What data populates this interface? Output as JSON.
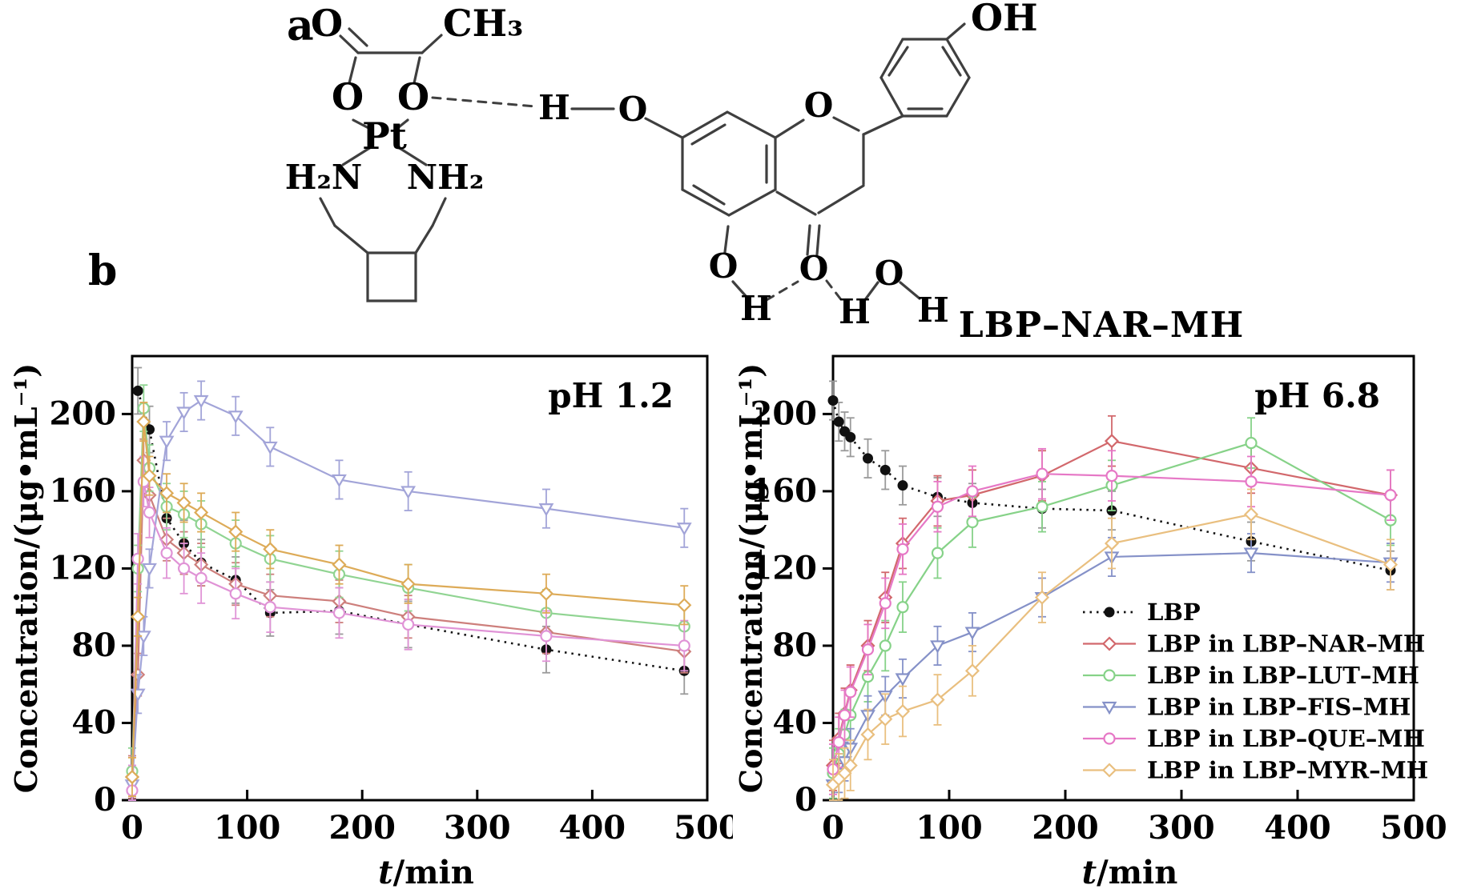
{
  "panel_a_label": "a",
  "panel_b_label": "b",
  "title": "LBP–NAR–MH",
  "structure": {
    "description": "hydrogen-bonded complex of lobaplatin with naringenin and water",
    "atoms": [
      {
        "id": "o-carboxyl",
        "label": "O"
      },
      {
        "id": "ch3",
        "label": "CH₃"
      },
      {
        "id": "o-left",
        "label": "O"
      },
      {
        "id": "o-right",
        "label": "O"
      },
      {
        "id": "pt",
        "label": "Pt"
      },
      {
        "id": "h2n",
        "label": "H₂N"
      },
      {
        "id": "nh2",
        "label": "NH₂"
      },
      {
        "id": "h-bridge",
        "label": "H"
      },
      {
        "id": "o-phenol7",
        "label": "O"
      },
      {
        "id": "o-chromene",
        "label": "O"
      },
      {
        "id": "oh-para",
        "label": "OH"
      },
      {
        "id": "o-5",
        "label": "O"
      },
      {
        "id": "h-5",
        "label": "H"
      },
      {
        "id": "o-ketone",
        "label": "O"
      },
      {
        "id": "h-water-left",
        "label": "H"
      },
      {
        "id": "o-water",
        "label": "O"
      },
      {
        "id": "h-water-right",
        "label": "H"
      }
    ]
  },
  "chart_data": [
    {
      "type": "line",
      "annotation": "pH 1.2",
      "xlabel_italic": "t",
      "xlabel_rest": "/min",
      "ylabel": "Concentration/(μg•mL⁻¹)",
      "xlim": [
        0,
        500
      ],
      "ylim": [
        0,
        230
      ],
      "xticks": [
        0,
        100,
        200,
        300,
        400,
        500
      ],
      "yticks": [
        0,
        40,
        80,
        120,
        160,
        200
      ],
      "grid": false,
      "legend": false,
      "series": [
        {
          "key": "lbp",
          "name": "LBP",
          "color": "#141414",
          "err_color": "#9a9a9a",
          "marker": "filled-circle",
          "dashed": true,
          "err": 12,
          "x": [
            5,
            15,
            30,
            45,
            60,
            90,
            120,
            180,
            240,
            360,
            480
          ],
          "y": [
            212,
            192,
            146,
            133,
            123,
            114,
            97,
            98,
            91,
            78,
            67
          ]
        },
        {
          "key": "nar",
          "name": "LBP in LBP–NAR–MH",
          "color": "#cd7f7c",
          "marker": "diamond",
          "dashed": false,
          "err": 11,
          "x": [
            0,
            5,
            10,
            15,
            30,
            45,
            60,
            90,
            120,
            180,
            240,
            360,
            480
          ],
          "y": [
            12,
            65,
            176,
            158,
            135,
            128,
            122,
            112,
            106,
            103,
            95,
            87,
            77
          ]
        },
        {
          "key": "lut",
          "name": "LBP in LBP–LUT–MH",
          "color": "#90d492",
          "marker": "circle",
          "dashed": false,
          "err": 12,
          "x": [
            0,
            5,
            10,
            15,
            30,
            45,
            60,
            90,
            120,
            180,
            240,
            360,
            480
          ],
          "y": [
            15,
            120,
            203,
            172,
            152,
            148,
            143,
            133,
            125,
            117,
            110,
            97,
            90
          ]
        },
        {
          "key": "fis",
          "name": "LBP in LBP–FIS–MH",
          "color": "#a2a4d8",
          "marker": "triangle-down",
          "dashed": false,
          "err": 10,
          "x": [
            0,
            5,
            10,
            15,
            30,
            45,
            60,
            90,
            120,
            180,
            240,
            360,
            480
          ],
          "y": [
            8,
            55,
            85,
            120,
            186,
            201,
            207,
            199,
            183,
            166,
            160,
            151,
            141
          ]
        },
        {
          "key": "que",
          "name": "LBP in LBP–QUE–MH",
          "color": "#e093d6",
          "marker": "circle",
          "dashed": false,
          "err": 13,
          "x": [
            0,
            5,
            10,
            15,
            30,
            45,
            60,
            90,
            120,
            180,
            240,
            360,
            480
          ],
          "y": [
            5,
            125,
            165,
            149,
            128,
            120,
            115,
            107,
            100,
            97,
            91,
            85,
            80
          ]
        },
        {
          "key": "myr",
          "name": "LBP in LBP–MYR–MH",
          "color": "#ddab58",
          "marker": "diamond",
          "dashed": false,
          "err": 10,
          "x": [
            0,
            5,
            10,
            15,
            30,
            45,
            60,
            90,
            120,
            180,
            240,
            360,
            480
          ],
          "y": [
            12,
            95,
            196,
            168,
            159,
            154,
            149,
            139,
            130,
            122,
            112,
            107,
            101
          ]
        }
      ]
    },
    {
      "type": "line",
      "annotation": "pH 6.8",
      "xlabel_italic": "t",
      "xlabel_rest": "/min",
      "ylabel": "Concentration/(μg•mL⁻¹)",
      "xlim": [
        0,
        500
      ],
      "ylim": [
        0,
        230
      ],
      "xticks": [
        0,
        100,
        200,
        300,
        400,
        500
      ],
      "yticks": [
        0,
        40,
        80,
        120,
        160,
        200
      ],
      "grid": false,
      "legend": true,
      "series": [
        {
          "key": "lbp",
          "name": "LBP",
          "color": "#141414",
          "err_color": "#9a9a9a",
          "marker": "filled-circle",
          "dashed": true,
          "err": 10,
          "x": [
            0,
            5,
            10,
            15,
            30,
            45,
            60,
            90,
            120,
            180,
            240,
            360,
            480
          ],
          "y": [
            207,
            196,
            191,
            188,
            177,
            171,
            163,
            157,
            154,
            151,
            150,
            134,
            119
          ]
        },
        {
          "key": "nar",
          "name": "LBP in LBP–NAR–MH",
          "color": "#d2686c",
          "marker": "diamond",
          "dashed": false,
          "err": 13,
          "x": [
            0,
            5,
            10,
            15,
            30,
            45,
            60,
            90,
            120,
            180,
            240,
            360,
            480
          ],
          "y": [
            18,
            32,
            45,
            57,
            80,
            105,
            133,
            155,
            158,
            168,
            186,
            172,
            158
          ]
        },
        {
          "key": "lut",
          "name": "LBP in LBP–LUT–MH",
          "color": "#86d288",
          "marker": "circle",
          "dashed": false,
          "err": 13,
          "x": [
            0,
            5,
            10,
            15,
            30,
            45,
            60,
            90,
            120,
            180,
            240,
            360,
            480
          ],
          "y": [
            14,
            24,
            34,
            44,
            64,
            80,
            100,
            128,
            144,
            152,
            163,
            185,
            145
          ]
        },
        {
          "key": "fis",
          "name": "LBP in LBP–FIS–MH",
          "color": "#8591c8",
          "marker": "triangle-down",
          "dashed": false,
          "err": 10,
          "x": [
            0,
            5,
            10,
            15,
            30,
            45,
            60,
            90,
            120,
            180,
            240,
            360,
            480
          ],
          "y": [
            8,
            14,
            20,
            27,
            44,
            54,
            63,
            80,
            87,
            105,
            126,
            128,
            123
          ]
        },
        {
          "key": "que",
          "name": "LBP in LBP–QUE–MH",
          "color": "#e678c6",
          "marker": "circle",
          "dashed": false,
          "err": 13,
          "x": [
            0,
            5,
            10,
            15,
            30,
            45,
            60,
            90,
            120,
            180,
            240,
            360,
            480
          ],
          "y": [
            16,
            30,
            44,
            56,
            78,
            102,
            130,
            152,
            160,
            169,
            168,
            165,
            158
          ]
        },
        {
          "key": "myr",
          "name": "LBP in LBP–MYR–MH",
          "color": "#e9bf7f",
          "marker": "diamond",
          "dashed": false,
          "err": 13,
          "x": [
            0,
            5,
            10,
            15,
            30,
            45,
            60,
            90,
            120,
            180,
            240,
            360,
            480
          ],
          "y": [
            8,
            11,
            14,
            18,
            34,
            42,
            46,
            52,
            67,
            105,
            133,
            148,
            122
          ]
        }
      ]
    }
  ]
}
